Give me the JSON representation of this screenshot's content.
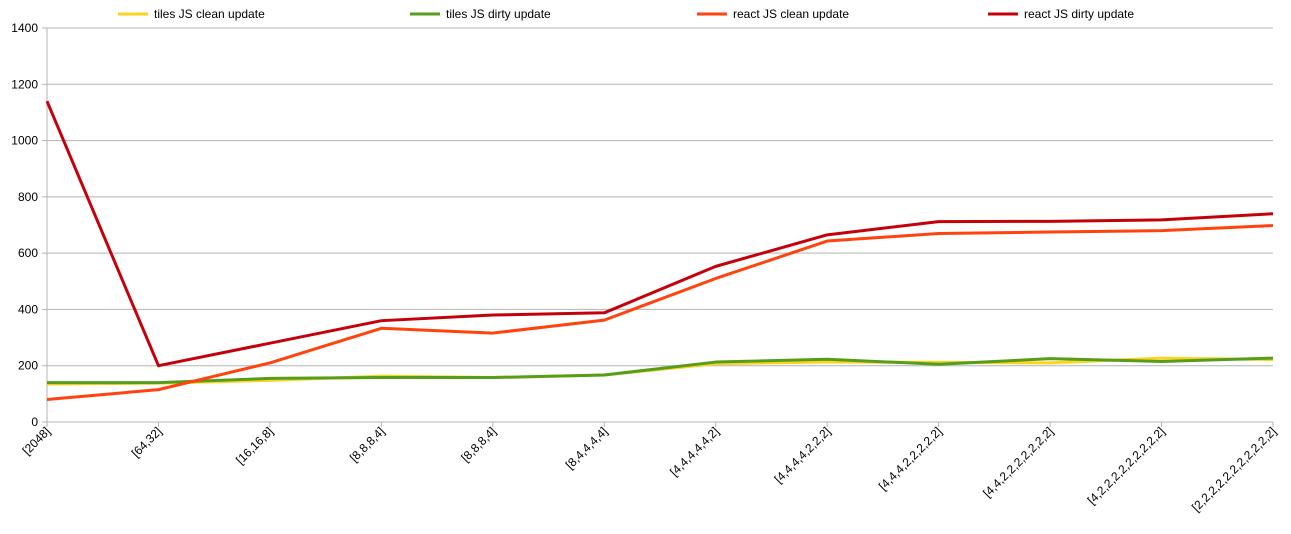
{
  "chart_data": {
    "type": "line",
    "categories": [
      "[2048]",
      "[64,32]",
      "[16,16,8]",
      "[8,8,8,4]",
      "[8,8,8,4]",
      "[8,4,4,4,4]",
      "[4,4,4,4,4,2]",
      "[4,4,4,4,2,2,2]",
      "[4,4,4,2,2,2,2,2]",
      "[4,4,2,2,2,2,2,2,2]",
      "[4,2,2,2,2,2,2,2,2,2]",
      "[2,2,2,2,2,2,2,2,2,2,2]"
    ],
    "series": [
      {
        "name": "tiles JS clean update",
        "color": "#ffd320",
        "values": [
          135,
          138,
          148,
          163,
          158,
          167,
          207,
          213,
          212,
          210,
          227,
          222
        ]
      },
      {
        "name": "tiles JS dirty update",
        "color": "#579d1c",
        "values": [
          140,
          140,
          155,
          158,
          158,
          167,
          213,
          223,
          205,
          225,
          215,
          227
        ]
      },
      {
        "name": "react JS clean update",
        "color": "#ff420e",
        "values": [
          80,
          115,
          210,
          333,
          316,
          362,
          510,
          643,
          670,
          675,
          680,
          698
        ]
      },
      {
        "name": "react JS dirty update",
        "color": "#c5000b",
        "values": [
          1140,
          200,
          280,
          360,
          380,
          388,
          553,
          665,
          712,
          713,
          718,
          740
        ]
      }
    ],
    "ylim": [
      0,
      1400
    ],
    "yticks": [
      0,
      200,
      400,
      600,
      800,
      1000,
      1200,
      1400
    ],
    "grid": true,
    "legend": "top"
  }
}
